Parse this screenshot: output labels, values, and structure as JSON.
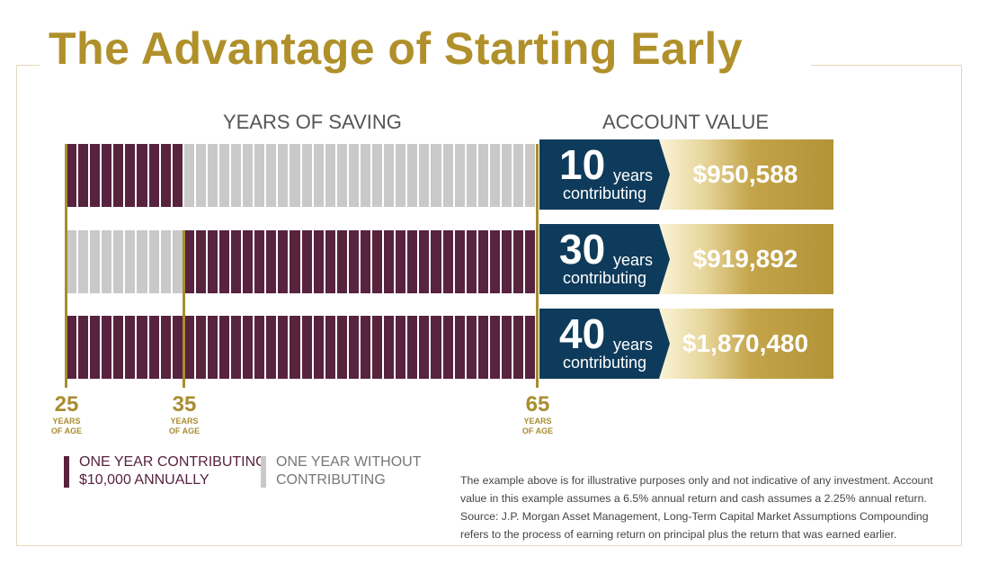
{
  "title": "The Advantage of Starting Early",
  "headings": {
    "years_of_saving": "YEARS OF SAVING",
    "account_value": "ACCOUNT VALUE"
  },
  "colors": {
    "gold": "#a88d30",
    "contributing": "#57233f",
    "not_contributing": "#c9c9c9",
    "navy": "#0e3b5b"
  },
  "scenarios": [
    {
      "years": "10",
      "years_word": "years",
      "contributing_word": "contributing",
      "value": "$950,588",
      "contribute_from_age": 25,
      "contribute_to_age": 35
    },
    {
      "years": "30",
      "years_word": "years",
      "contributing_word": "contributing",
      "value": "$919,892",
      "contribute_from_age": 35,
      "contribute_to_age": 65
    },
    {
      "years": "40",
      "years_word": "years",
      "contributing_word": "contributing",
      "value": "$1,870,480",
      "contribute_from_age": 25,
      "contribute_to_age": 65
    }
  ],
  "ages": [
    {
      "age": "25",
      "line1": "YEARS",
      "line2": "OF AGE"
    },
    {
      "age": "35",
      "line1": "YEARS",
      "line2": "OF AGE"
    },
    {
      "age": "65",
      "line1": "YEARS",
      "line2": "OF AGE"
    }
  ],
  "legend": {
    "contributing": {
      "line1": "ONE YEAR CONTRIBUTING",
      "line2": "$10,000 ANNUALLY"
    },
    "not_contributing": {
      "line1": "ONE YEAR WITHOUT",
      "line2": "CONTRIBUTING"
    }
  },
  "footnote": "The example above is for illustrative purposes only and not indicative of any investment. Account value in this example assumes a 6.5% annual return and cash assumes a 2.25% annual return. Source: J.P. Morgan Asset Management, Long-Term Capital Market Assumptions Compounding refers to the process of earning return on principal plus the return that was earned earlier."
}
